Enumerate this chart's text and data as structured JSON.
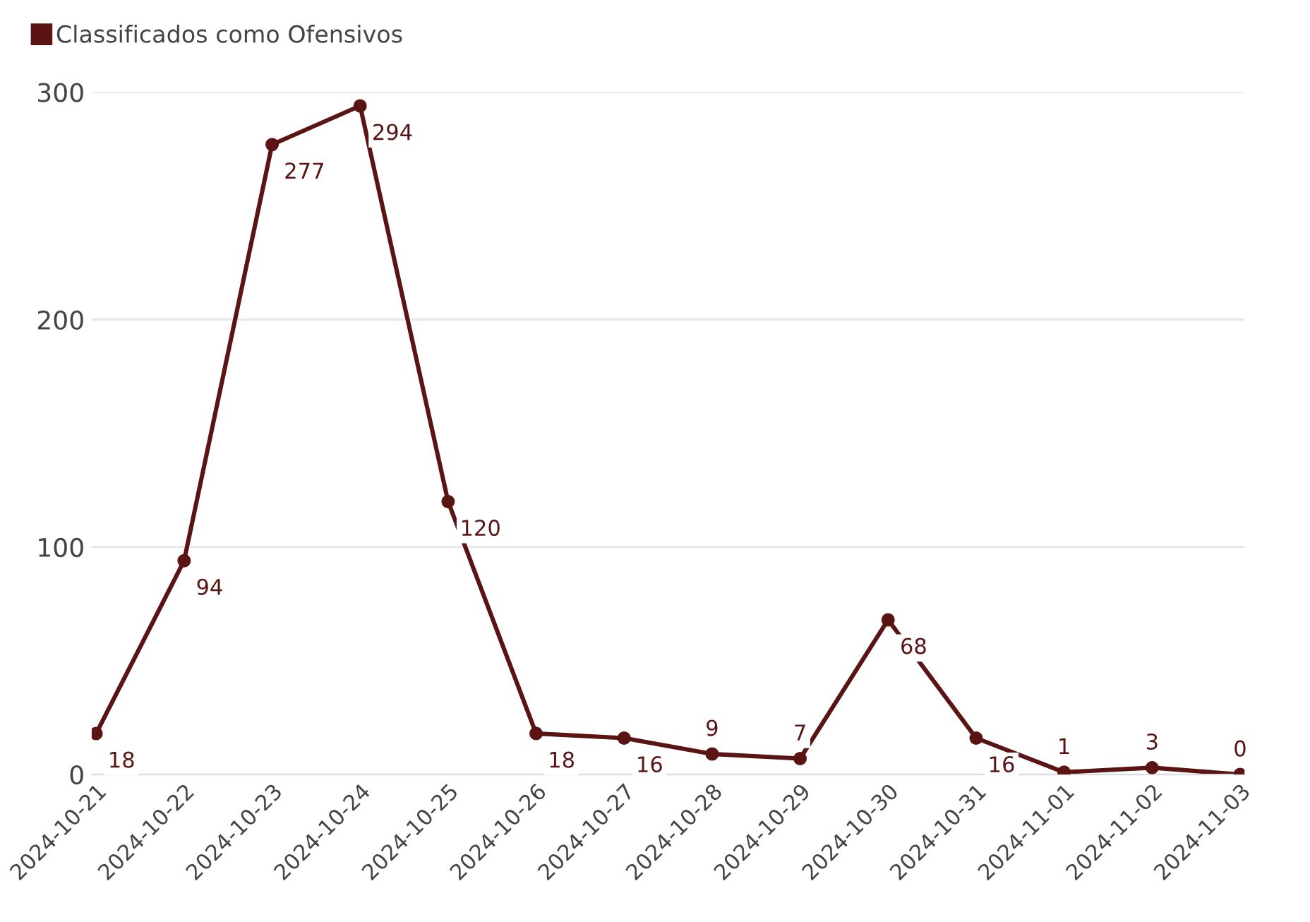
{
  "chart_data": {
    "type": "line",
    "categories": [
      "2024-10-21",
      "2024-10-22",
      "2024-10-23",
      "2024-10-24",
      "2024-10-25",
      "2024-10-26",
      "2024-10-27",
      "2024-10-28",
      "2024-10-29",
      "2024-10-30",
      "2024-10-31",
      "2024-11-01",
      "2024-11-02",
      "2024-11-03"
    ],
    "series": [
      {
        "name": "Classificados como Ofensivos",
        "color": "#5a1414",
        "values": [
          18,
          94,
          277,
          294,
          120,
          18,
          16,
          9,
          7,
          68,
          16,
          1,
          3,
          0
        ]
      }
    ],
    "ylim": [
      0,
      300
    ],
    "yticks": [
      0,
      100,
      200,
      300
    ],
    "grid": "y",
    "legend": "top left",
    "marker": "circle",
    "line_style": "solid",
    "data_labels": true
  }
}
